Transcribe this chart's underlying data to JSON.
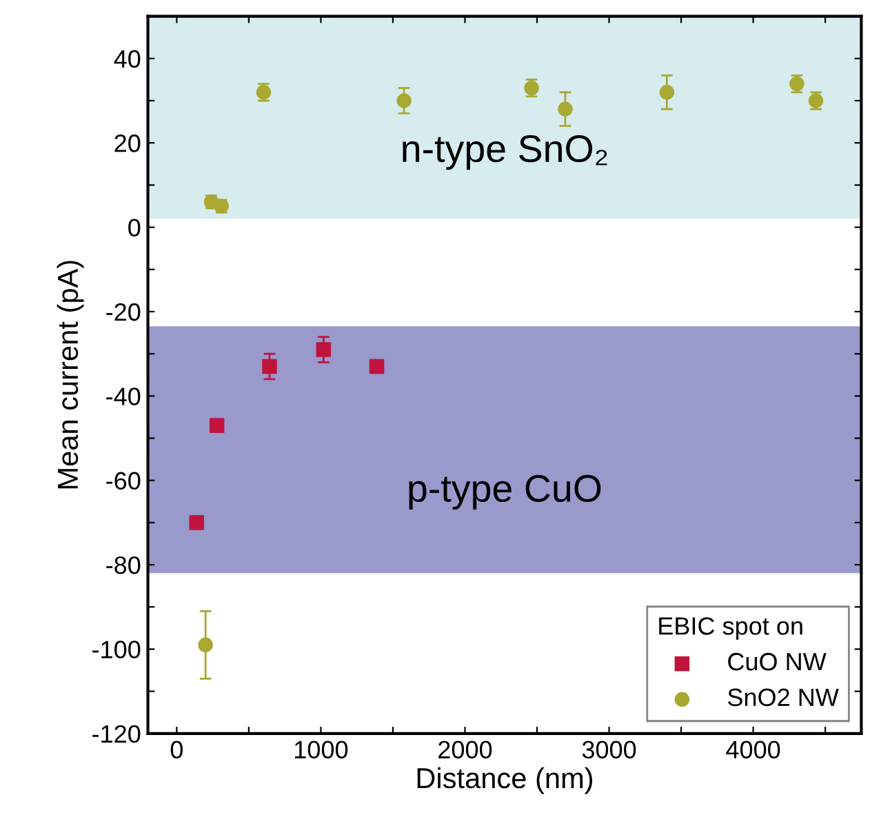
{
  "chart_data": {
    "type": "scatter",
    "xlabel": "Distance (nm)",
    "ylabel": "Mean current (pA)",
    "legend_title": "EBIC spot on",
    "series": [
      {
        "name": "CuO NW",
        "color": "#c0143c",
        "marker": "square",
        "x": [
          138,
          279,
          644,
          1019,
          1388
        ],
        "values": [
          -70,
          -47,
          -33,
          -29,
          -33
        ],
        "errors": [
          1.5,
          1.5,
          3,
          3,
          1.5
        ]
      },
      {
        "name": "SnO2 NW",
        "color": "#a8a832",
        "marker": "circle",
        "x": [
          240,
          310,
          603,
          1577,
          2462,
          2696,
          3401,
          4303,
          4435,
          200
        ],
        "values": [
          6,
          5,
          32,
          30,
          33,
          28,
          32,
          34,
          30,
          -99
        ],
        "errors": [
          1.5,
          1.5,
          2,
          3,
          2,
          4,
          4,
          2,
          2,
          8
        ]
      }
    ],
    "bands": [
      {
        "axis": "y",
        "from": 2,
        "to": 50,
        "label": "n-type SnO₂",
        "color": "#d6ecee"
      },
      {
        "axis": "y",
        "from": -82,
        "to": -23.5,
        "label": "p-type CuO",
        "color": "#9999cc"
      }
    ],
    "xlim": [
      -200,
      4750
    ],
    "ylim": [
      -120,
      50
    ],
    "xticks": [
      0,
      {
        "value": 500,
        "label": null
      },
      1000,
      {
        "value": 1500,
        "label": null
      },
      2000,
      {
        "value": 2500,
        "label": null
      },
      3000,
      {
        "value": 3500,
        "label": null
      },
      4000,
      {
        "value": 4500,
        "label": null
      }
    ],
    "yticks": [
      -120,
      {
        "value": -110,
        "label": null
      },
      -100,
      {
        "value": -90,
        "label": null
      },
      -80,
      {
        "value": -70,
        "label": null
      },
      -60,
      {
        "value": -50,
        "label": null
      },
      -40,
      {
        "value": -30,
        "label": null
      },
      -20,
      {
        "value": -10,
        "label": null
      },
      0,
      {
        "value": 10,
        "label": null
      },
      20,
      {
        "value": 30,
        "label": null
      },
      40
    ],
    "legend": "bottom right",
    "grid": false
  }
}
